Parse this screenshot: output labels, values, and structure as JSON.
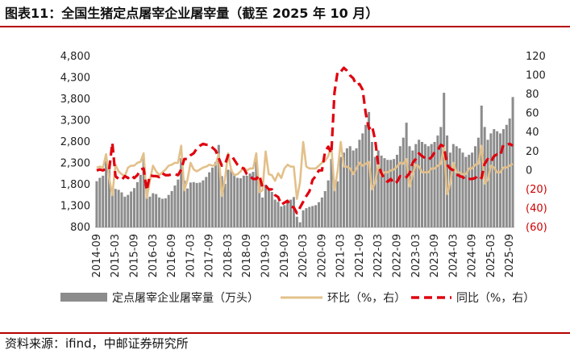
{
  "header": {
    "title": "图表11：全国生猪定点屠宰企业屠宰量（截至 2025 年 10 月）"
  },
  "footer": {
    "source": "资料来源：ifind，中邮证券研究所"
  },
  "colors": {
    "bar": "#8c8c8c",
    "mom": "#e3c08a",
    "yoy": "#e0000e",
    "negative_tick": "#cc0000",
    "rule": "#b40000"
  },
  "chart_data": {
    "type": "bar",
    "title": "",
    "x_tick_labels": [
      "2014-09",
      "2015-03",
      "2015-09",
      "2016-03",
      "2016-09",
      "2017-03",
      "2017-09",
      "2018-03",
      "2018-09",
      "2019-03",
      "2019-09",
      "2020-03",
      "2020-09",
      "2021-03",
      "2021-09",
      "2022-03",
      "2022-09",
      "2023-03",
      "2023-09",
      "2024-03",
      "2024-09",
      "2025-03",
      "2025-09"
    ],
    "left_axis": {
      "ylim": [
        800,
        4800
      ],
      "ticks": [
        800,
        1300,
        1800,
        2300,
        2800,
        3300,
        3800,
        4300,
        4800
      ],
      "tick_labels": [
        "800",
        "1,300",
        "1,800",
        "2,300",
        "2,800",
        "3,300",
        "3,800",
        "4,300",
        "4,800"
      ]
    },
    "right_axis": {
      "ylim": [
        -60,
        120
      ],
      "ticks": [
        -60,
        -40,
        -20,
        0,
        20,
        40,
        60,
        80,
        100,
        120
      ],
      "tick_labels": [
        "(60)",
        "(40)",
        "(20)",
        "0",
        "20",
        "40",
        "60",
        "80",
        "100",
        "120"
      ]
    },
    "legend": {
      "placement": "bottom",
      "entries": [
        "定点屠宰企业屠宰量（万头）",
        "环比（%，右）",
        "同比（%，右）"
      ]
    },
    "x": [
      "2014-09",
      "2014-10",
      "2014-11",
      "2014-12",
      "2015-01",
      "2015-02",
      "2015-03",
      "2015-04",
      "2015-05",
      "2015-06",
      "2015-07",
      "2015-08",
      "2015-09",
      "2015-10",
      "2015-11",
      "2015-12",
      "2016-01",
      "2016-02",
      "2016-03",
      "2016-04",
      "2016-05",
      "2016-06",
      "2016-07",
      "2016-08",
      "2016-09",
      "2016-10",
      "2016-11",
      "2016-12",
      "2017-01",
      "2017-02",
      "2017-03",
      "2017-04",
      "2017-05",
      "2017-06",
      "2017-07",
      "2017-08",
      "2017-09",
      "2017-10",
      "2017-11",
      "2017-12",
      "2018-01",
      "2018-02",
      "2018-03",
      "2018-04",
      "2018-05",
      "2018-06",
      "2018-07",
      "2018-08",
      "2018-09",
      "2018-10",
      "2018-11",
      "2018-12",
      "2019-01",
      "2019-02",
      "2019-03",
      "2019-04",
      "2019-05",
      "2019-06",
      "2019-07",
      "2019-08",
      "2019-09",
      "2019-10",
      "2019-11",
      "2019-12",
      "2020-01",
      "2020-02",
      "2020-03",
      "2020-04",
      "2020-05",
      "2020-06",
      "2020-07",
      "2020-08",
      "2020-09",
      "2020-10",
      "2020-11",
      "2020-12",
      "2021-01",
      "2021-02",
      "2021-03",
      "2021-04",
      "2021-05",
      "2021-06",
      "2021-07",
      "2021-08",
      "2021-09",
      "2021-10",
      "2021-11",
      "2021-12",
      "2022-01",
      "2022-02",
      "2022-03",
      "2022-04",
      "2022-05",
      "2022-06",
      "2022-07",
      "2022-08",
      "2022-09",
      "2022-10",
      "2022-11",
      "2022-12",
      "2023-01",
      "2023-02",
      "2023-03",
      "2023-04",
      "2023-05",
      "2023-06",
      "2023-07",
      "2023-08",
      "2023-09",
      "2023-10",
      "2023-11",
      "2023-12",
      "2024-01",
      "2024-02",
      "2024-03",
      "2024-04",
      "2024-05",
      "2024-06",
      "2024-07",
      "2024-08",
      "2024-09",
      "2024-10",
      "2024-11",
      "2024-12",
      "2025-01",
      "2025-02",
      "2025-03",
      "2025-04",
      "2025-05",
      "2025-06",
      "2025-07",
      "2025-08",
      "2025-09",
      "2025-10"
    ],
    "series": [
      {
        "name": "定点屠宰企业屠宰量（万头）",
        "type": "bar",
        "axis": "left",
        "values": [
          1880,
          1960,
          2010,
          2350,
          2150,
          1600,
          1700,
          1680,
          1620,
          1520,
          1560,
          1640,
          1720,
          1860,
          2030,
          2400,
          1700,
          1520,
          1600,
          1580,
          1500,
          1470,
          1480,
          1560,
          1650,
          1780,
          1920,
          2420,
          1900,
          1710,
          1850,
          1860,
          1840,
          1850,
          1900,
          1980,
          2090,
          2200,
          2330,
          2730,
          2000,
          1820,
          2150,
          2160,
          2050,
          1960,
          1950,
          2010,
          2010,
          2060,
          2100,
          2480,
          1900,
          1500,
          1800,
          1720,
          1630,
          1450,
          1400,
          1290,
          1320,
          1400,
          1450,
          1510,
          1050,
          920,
          1200,
          1250,
          1280,
          1300,
          1320,
          1390,
          1500,
          1650,
          1900,
          2400,
          1900,
          1880,
          2450,
          2550,
          2650,
          2700,
          2600,
          2650,
          2850,
          3000,
          3200,
          3500,
          2800,
          2450,
          2600,
          2480,
          2420,
          2380,
          2380,
          2400,
          2500,
          2700,
          2900,
          3250,
          2700,
          2600,
          2750,
          2850,
          2800,
          2750,
          2700,
          2750,
          2800,
          2950,
          3150,
          3950,
          2950,
          2550,
          2750,
          2700,
          2650,
          2550,
          2450,
          2500,
          2550,
          2700,
          2900,
          3650,
          3150,
          2850,
          3000,
          3100,
          3050,
          3000,
          3100,
          3200,
          3350,
          3850
        ]
      },
      {
        "name": "环比（%，右）",
        "type": "line",
        "axis": "right",
        "values": [
          3,
          4,
          3,
          17,
          -8,
          -26,
          6,
          -1,
          -4,
          -6,
          3,
          5,
          5,
          8,
          9,
          18,
          -29,
          -11,
          5,
          -1,
          -5,
          -2,
          1,
          5,
          6,
          8,
          8,
          26,
          -21,
          -10,
          8,
          1,
          -1,
          1,
          3,
          4,
          6,
          5,
          6,
          17,
          -27,
          -9,
          18,
          0,
          -5,
          -4,
          -1,
          3,
          0,
          2,
          2,
          18,
          -23,
          -21,
          20,
          -4,
          -5,
          -11,
          -3,
          -8,
          2,
          6,
          4,
          4,
          -30,
          -12,
          30,
          4,
          2,
          2,
          2,
          5,
          8,
          10,
          15,
          26,
          -21,
          -1,
          30,
          4,
          4,
          2,
          -4,
          2,
          8,
          5,
          7,
          9,
          -20,
          -13,
          6,
          -5,
          -2,
          -2,
          0,
          1,
          4,
          8,
          7,
          12,
          -17,
          -4,
          6,
          4,
          -2,
          -2,
          -2,
          2,
          2,
          5,
          7,
          25,
          -25,
          -14,
          8,
          -2,
          -2,
          -4,
          -4,
          2,
          2,
          6,
          7,
          26,
          -14,
          -10,
          5,
          3,
          -2,
          -2,
          3,
          3,
          5,
          7
        ]
      },
      {
        "name": "同比（%，右）",
        "type": "line",
        "axis": "right",
        "values": [
          0,
          1,
          0,
          2,
          1,
          29,
          -6,
          -9,
          -10,
          -6,
          -8,
          -5,
          -8,
          -5,
          1,
          2,
          -21,
          -5,
          -6,
          -6,
          -7,
          -3,
          -5,
          -5,
          -4,
          -4,
          -5,
          1,
          12,
          12,
          16,
          18,
          23,
          26,
          28,
          27,
          27,
          24,
          21,
          13,
          5,
          6,
          16,
          16,
          11,
          6,
          3,
          2,
          -4,
          -6,
          -9,
          -9,
          -5,
          -18,
          -16,
          -20,
          -20,
          -26,
          -28,
          -36,
          -34,
          -32,
          -38,
          -39,
          -45,
          -39,
          -33,
          -27,
          -22,
          -10,
          -6,
          0,
          0,
          20,
          25,
          18,
          82,
          104,
          104,
          108,
          105,
          100,
          97,
          90,
          91,
          85,
          60,
          44,
          47,
          32,
          6,
          -3,
          -9,
          -12,
          -9,
          -14,
          -12,
          -6,
          -8,
          -7,
          -3,
          8,
          12,
          18,
          15,
          13,
          11,
          14,
          19,
          21,
          27,
          25,
          6,
          2,
          0,
          -4,
          -6,
          -7,
          -10,
          -9,
          -9,
          -8,
          -5,
          -8,
          7,
          12,
          9,
          15,
          17,
          16,
          27,
          27,
          28,
          26
        ]
      }
    ]
  }
}
